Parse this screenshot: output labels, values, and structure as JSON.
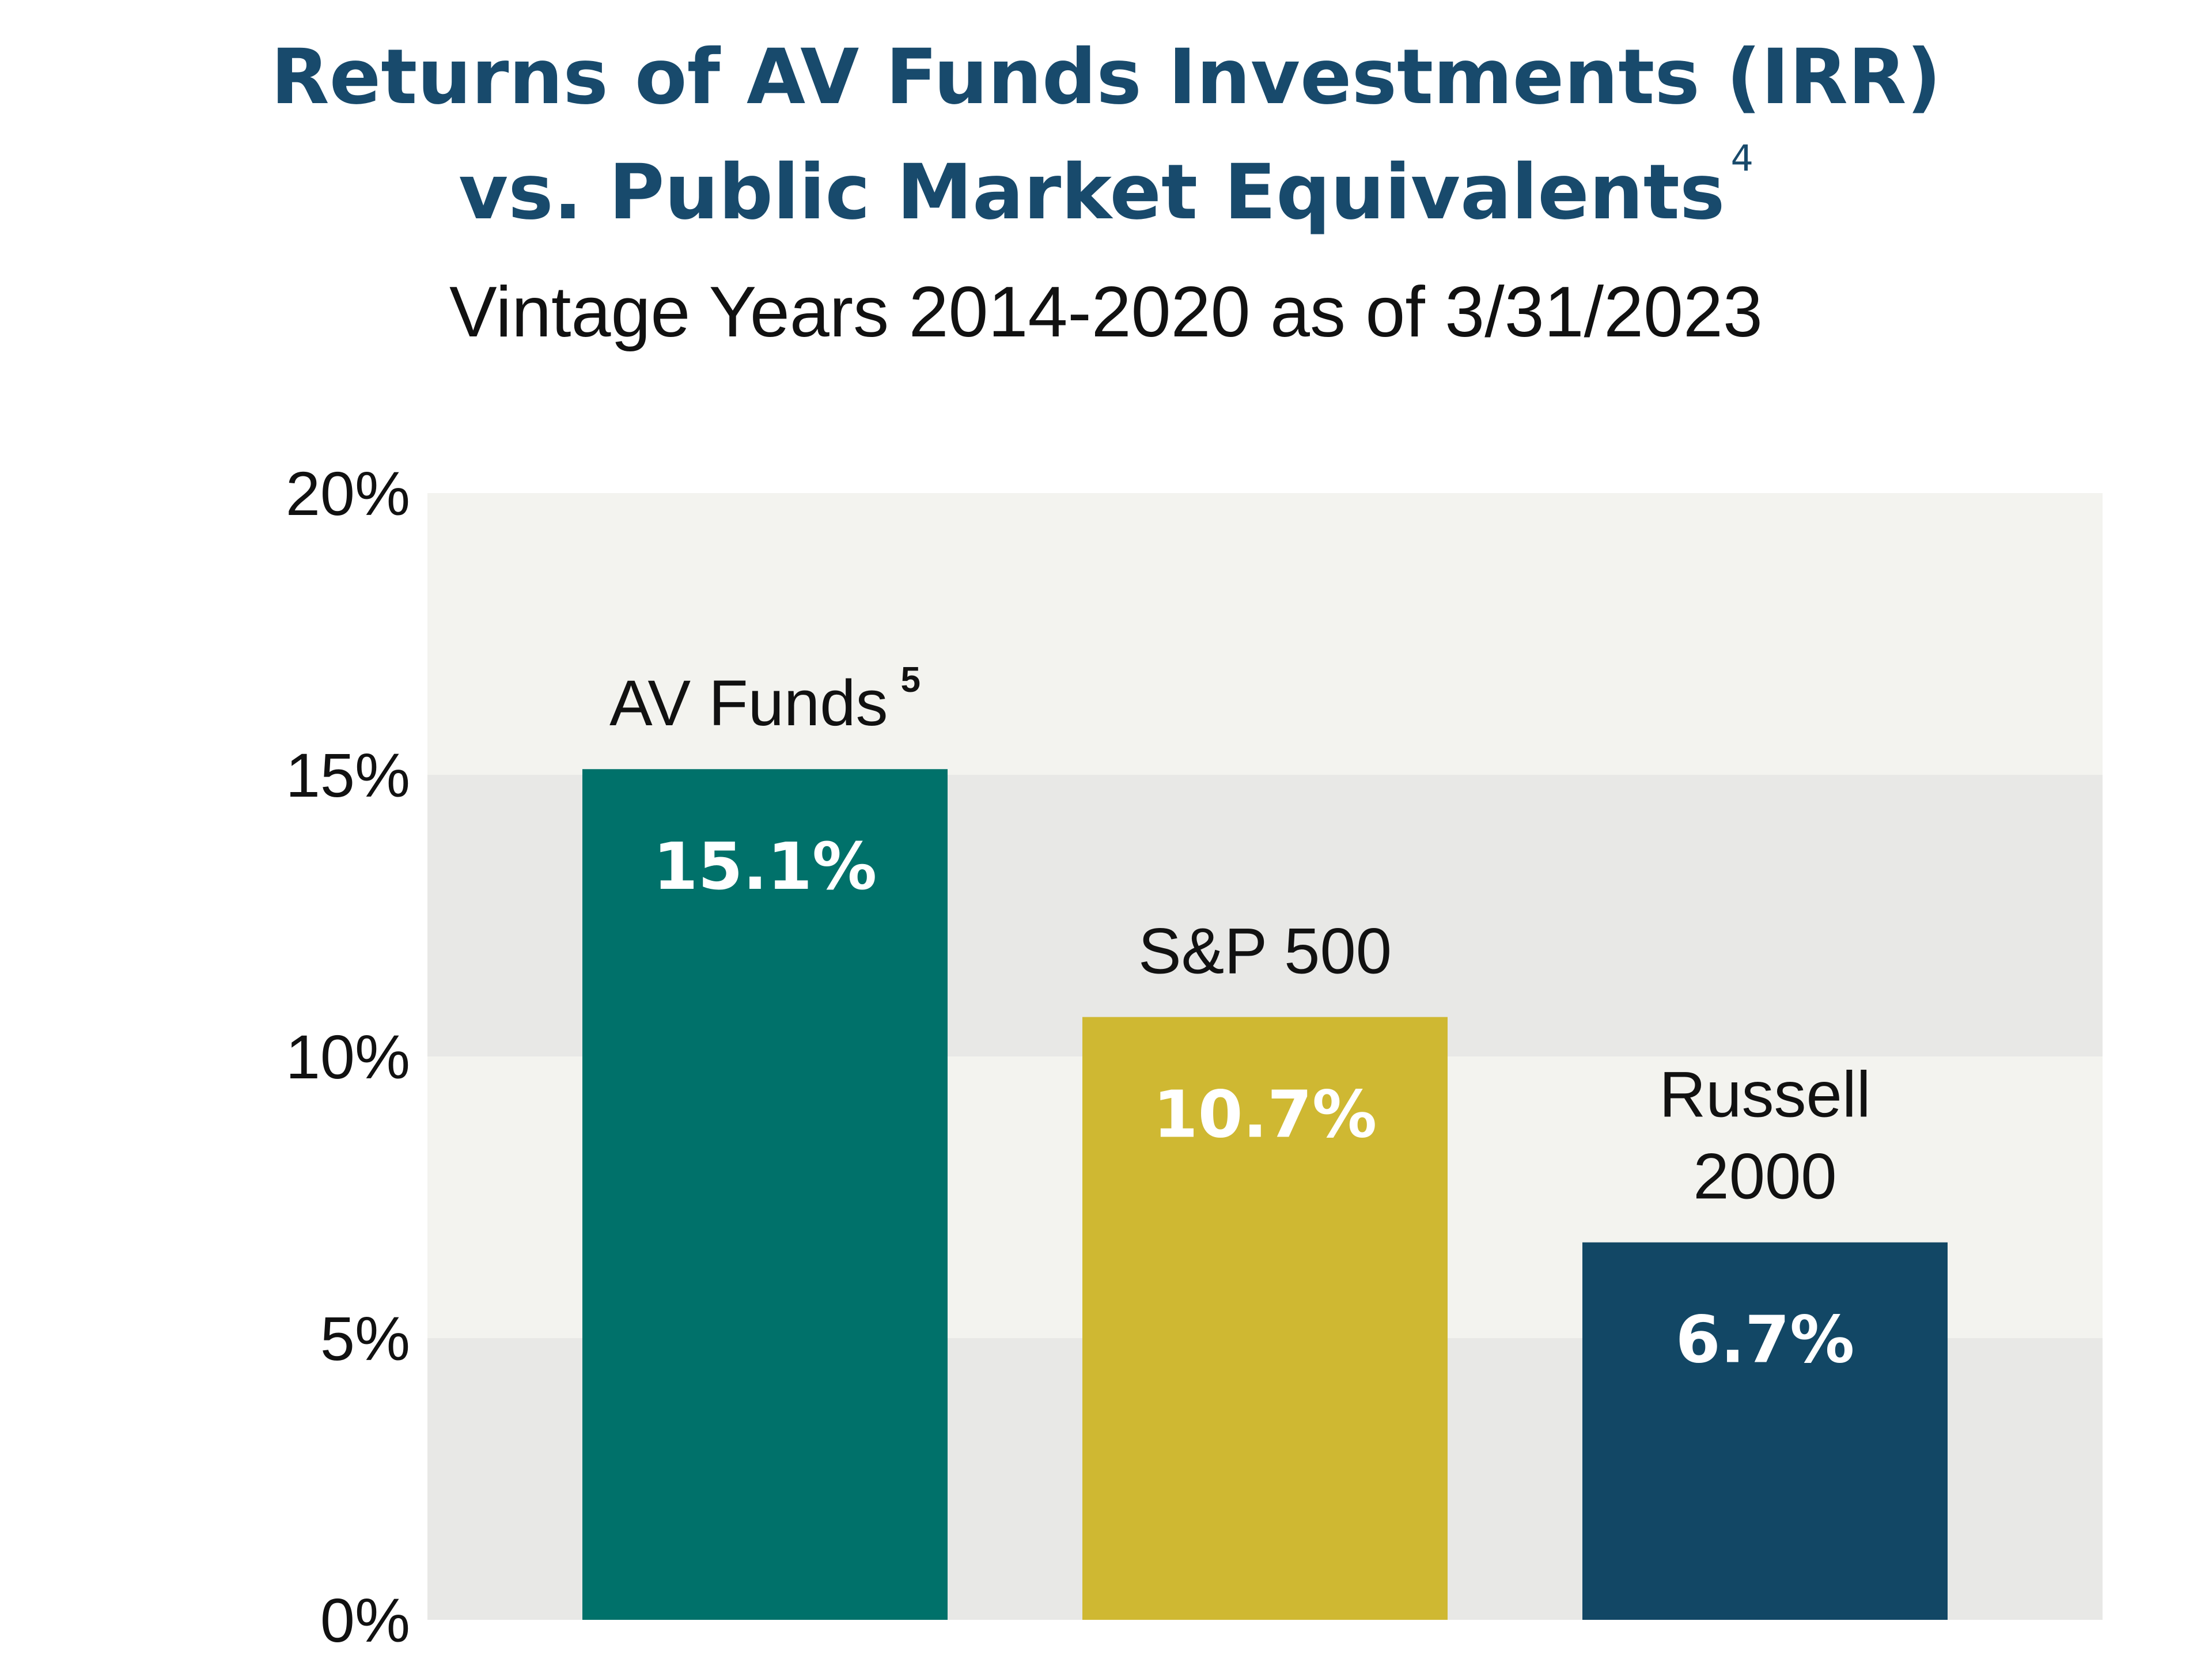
{
  "header": {
    "title_line1": "Returns of AV Funds Investments (IRR)",
    "title_line2": "vs. Public Market Equivalents",
    "title_line2_superscript": "4",
    "subtitle": "Vintage Years 2014-2020 as of 3/31/2023"
  },
  "chart_data": {
    "type": "bar",
    "title": "Returns of AV Funds Investments (IRR) vs. Public Market Equivalents",
    "subtitle": "Vintage Years 2014-2020 as of 3/31/2023",
    "xlabel": "",
    "ylabel": "",
    "ylim": [
      0,
      20
    ],
    "yticks": [
      0,
      5,
      10,
      15,
      20
    ],
    "ytick_labels": [
      "0%",
      "5%",
      "10%",
      "15%",
      "20%"
    ],
    "grid": "alternating horizontal bands",
    "legend": "none",
    "categories": [
      "AV Funds",
      "S&P 500",
      "Russell 2000"
    ],
    "category_lines": [
      [
        "AV Funds"
      ],
      [
        "S&P 500"
      ],
      [
        "Russell",
        "2000"
      ]
    ],
    "category_superscripts": [
      "5",
      "",
      ""
    ],
    "values": [
      15.1,
      10.7,
      6.7
    ],
    "value_labels": [
      "15.1%",
      "10.7%",
      "6.7%"
    ],
    "colors": [
      "#00716a",
      "#cfb832",
      "#124765"
    ],
    "band_colors": [
      "#e8e8e6",
      "#f3f3ef"
    ]
  }
}
